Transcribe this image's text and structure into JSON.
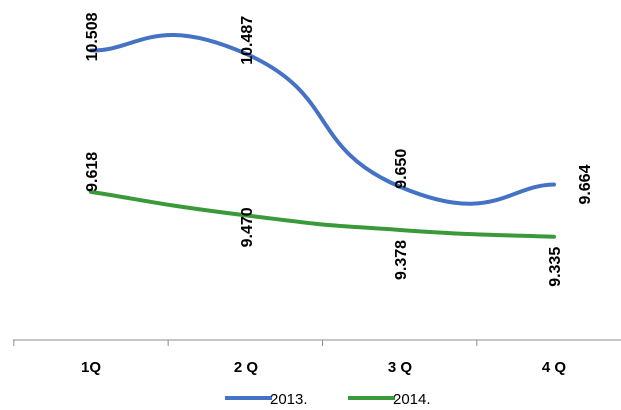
{
  "chart_data": {
    "type": "line",
    "categories": [
      "1Q",
      "2 Q",
      "3 Q",
      "4 Q"
    ],
    "series": [
      {
        "name": "2013.",
        "color": "#4472C4",
        "values": [
          10.508,
          10.487,
          9.65,
          9.664
        ],
        "labels": [
          "10.508",
          "10.487",
          "9.650",
          "9.664"
        ]
      },
      {
        "name": "2014.",
        "color": "#3A9A3A",
        "values": [
          9.618,
          9.47,
          9.378,
          9.335
        ],
        "labels": [
          "9.618",
          "9.470",
          "9.378",
          "9.335"
        ]
      }
    ],
    "smooth": true,
    "data_labels_rotated": true,
    "legend_position": "bottom",
    "grid": false
  }
}
